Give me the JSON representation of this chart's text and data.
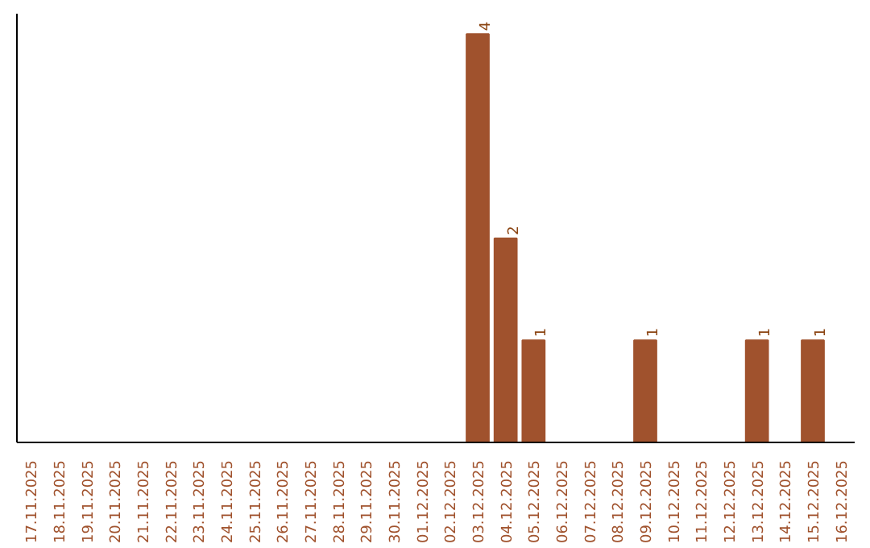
{
  "chart_data": {
    "type": "bar",
    "categories": [
      "17.11.2025",
      "18.11.2025",
      "19.11.2025",
      "20.11.2025",
      "21.11.2025",
      "22.11.2025",
      "23.11.2025",
      "24.11.2025",
      "25.11.2025",
      "26.11.2025",
      "27.11.2025",
      "28.11.2025",
      "29.11.2025",
      "30.11.2025",
      "01.12.2025",
      "02.12.2025",
      "03.12.2025",
      "04.12.2025",
      "05.12.2025",
      "06.12.2025",
      "07.12.2025",
      "08.12.2025",
      "09.12.2025",
      "10.12.2025",
      "11.12.2025",
      "12.12.2025",
      "13.12.2025",
      "14.12.2025",
      "15.12.2025",
      "16.12.2025"
    ],
    "values": [
      null,
      null,
      null,
      null,
      null,
      null,
      null,
      null,
      null,
      null,
      null,
      null,
      null,
      null,
      null,
      null,
      4,
      2,
      1,
      null,
      null,
      null,
      1,
      null,
      null,
      null,
      1,
      null,
      1,
      null
    ],
    "value_labels": [
      null,
      null,
      null,
      null,
      null,
      null,
      null,
      null,
      null,
      null,
      null,
      null,
      null,
      null,
      null,
      null,
      "4",
      "2",
      "1",
      null,
      null,
      null,
      "1",
      null,
      null,
      null,
      "1",
      null,
      "1",
      null
    ],
    "color": "#a0522d",
    "tick_labels": "x",
    "grid": false
  }
}
